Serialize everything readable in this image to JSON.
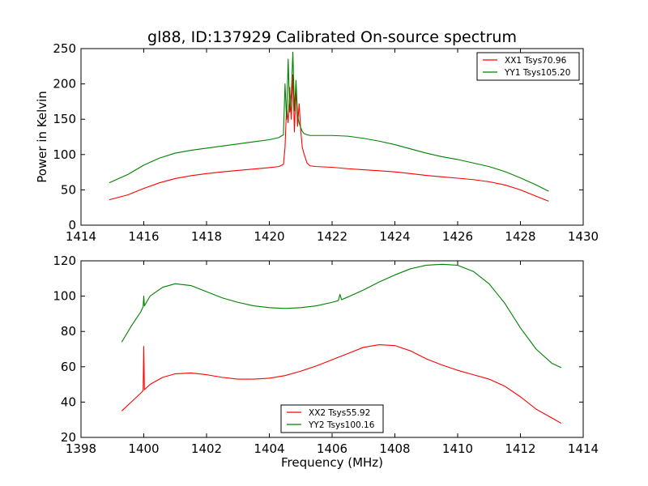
{
  "chart_data": [
    {
      "type": "line",
      "title": "gl88, ID:137929 Calibrated On-source spectrum",
      "xlabel": "",
      "ylabel": "Power in Kelvin",
      "xlim": [
        1414,
        1430
      ],
      "ylim": [
        0,
        250
      ],
      "xticks": [
        1414,
        1416,
        1418,
        1420,
        1422,
        1424,
        1426,
        1428,
        1430
      ],
      "yticks": [
        0,
        50,
        100,
        150,
        200,
        250
      ],
      "grid": false,
      "legend_position": "top-right",
      "series": [
        {
          "name": "XX1 Tsys70.96",
          "color": "#ff0000",
          "x": [
            1414.9,
            1415.5,
            1416,
            1416.5,
            1417,
            1417.5,
            1418,
            1418.5,
            1419,
            1419.5,
            1420,
            1420.3,
            1420.45,
            1420.5,
            1420.55,
            1420.6,
            1420.65,
            1420.7,
            1420.75,
            1420.8,
            1420.85,
            1420.9,
            1420.95,
            1421.0,
            1421.05,
            1421.1,
            1421.2,
            1421.3,
            1421.5,
            1422,
            1422.5,
            1423,
            1423.5,
            1424,
            1424.5,
            1425,
            1425.5,
            1426,
            1426.5,
            1427,
            1427.5,
            1428,
            1428.5,
            1428.9
          ],
          "y": [
            36,
            43,
            52,
            60,
            66,
            70,
            73,
            75.5,
            77.5,
            79.5,
            81.5,
            83,
            86,
            110,
            168,
            145,
            195,
            150,
            213,
            132,
            195,
            140,
            172,
            135,
            110,
            102,
            88,
            84,
            83,
            82,
            80,
            78.5,
            77,
            75.5,
            73,
            70.5,
            68.5,
            66.5,
            64.5,
            61.5,
            57,
            50,
            41,
            34
          ]
        },
        {
          "name": "YY1 Tsys105.20",
          "color": "#008000",
          "x": [
            1414.9,
            1415.5,
            1416,
            1416.5,
            1417,
            1417.5,
            1418,
            1418.5,
            1419,
            1419.5,
            1420,
            1420.3,
            1420.45,
            1420.5,
            1420.55,
            1420.6,
            1420.65,
            1420.7,
            1420.75,
            1420.8,
            1420.85,
            1420.9,
            1420.95,
            1421.0,
            1421.05,
            1421.1,
            1421.2,
            1421.3,
            1421.5,
            1422,
            1422.5,
            1423,
            1423.5,
            1424,
            1424.5,
            1425,
            1425.5,
            1426,
            1426.5,
            1427,
            1427.5,
            1428,
            1428.5,
            1428.9
          ],
          "y": [
            60,
            72,
            85,
            95,
            102,
            106,
            109,
            112,
            115,
            118,
            121,
            124,
            128,
            200,
            150,
            235,
            160,
            185,
            245,
            162,
            205,
            155,
            145,
            138,
            133,
            130,
            128,
            127,
            127,
            127,
            126,
            123,
            119,
            114,
            108,
            102,
            97,
            93,
            88,
            83,
            76,
            67,
            57,
            48
          ]
        }
      ]
    },
    {
      "type": "line",
      "title": "",
      "xlabel": "Frequency (MHz)",
      "ylabel": "",
      "xlim": [
        1398,
        1414
      ],
      "ylim": [
        20,
        120
      ],
      "xticks": [
        1398,
        1400,
        1402,
        1404,
        1406,
        1408,
        1410,
        1412,
        1414
      ],
      "yticks": [
        20,
        40,
        60,
        80,
        100,
        120
      ],
      "grid": false,
      "legend_position": "bottom-center",
      "series": [
        {
          "name": "XX2 Tsys55.92",
          "color": "#ff0000",
          "x": [
            1399.3,
            1399.6,
            1399.9,
            1399.98,
            1400.0,
            1400.02,
            1400.2,
            1400.6,
            1401,
            1401.5,
            1402,
            1402.5,
            1403,
            1403.5,
            1404,
            1404.5,
            1405,
            1405.5,
            1406,
            1406.5,
            1407,
            1407.5,
            1408,
            1408.5,
            1409,
            1409.5,
            1410,
            1410.5,
            1411,
            1411.5,
            1412,
            1412.5,
            1413,
            1413.3
          ],
          "y": [
            35,
            40,
            45,
            46.5,
            71.5,
            47,
            50,
            54,
            56,
            56.5,
            55.5,
            54,
            53,
            53,
            53.5,
            55,
            57.5,
            60.5,
            64,
            67.5,
            71,
            72.5,
            72,
            69,
            64.5,
            61,
            58,
            55.5,
            53,
            49,
            43,
            36,
            31,
            28
          ]
        },
        {
          "name": "YY2 Tsys100.16",
          "color": "#008000",
          "x": [
            1399.3,
            1399.6,
            1399.9,
            1399.98,
            1400.0,
            1400.02,
            1400.2,
            1400.6,
            1401,
            1401.5,
            1402,
            1402.5,
            1403,
            1403.5,
            1404,
            1404.5,
            1405,
            1405.5,
            1406,
            1406.2,
            1406.25,
            1406.3,
            1406.5,
            1407,
            1407.5,
            1408,
            1408.5,
            1409,
            1409.5,
            1410,
            1410.5,
            1411,
            1411.5,
            1412,
            1412.5,
            1413,
            1413.3
          ],
          "y": [
            74,
            83,
            91,
            94,
            100,
            94.5,
            100,
            105,
            107,
            106,
            102.5,
            99,
            96.5,
            94.5,
            93.5,
            93,
            93.5,
            94.5,
            96.5,
            97.5,
            101,
            98,
            99.5,
            103.5,
            108,
            112,
            115.5,
            117.5,
            118,
            117.5,
            114,
            107,
            96,
            82,
            70,
            62,
            59.5
          ]
        }
      ]
    }
  ]
}
